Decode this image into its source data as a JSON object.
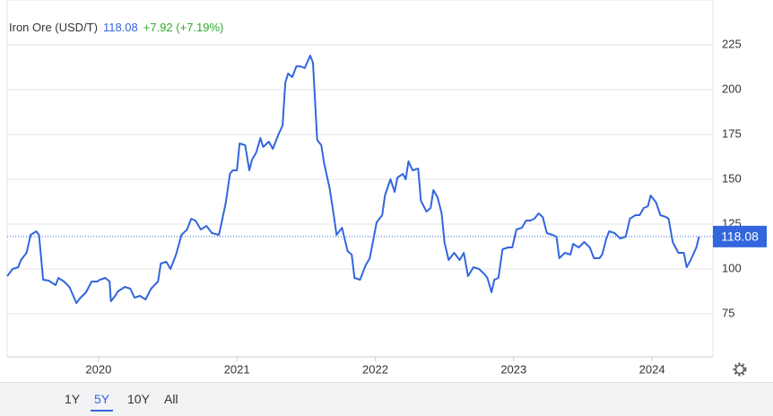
{
  "chart_data": {
    "type": "line",
    "title": "Iron Ore (USD/T)",
    "last_value": 118.08,
    "change_label": "+7.92 (+7.19%)",
    "color": "#3366dd",
    "x": [
      2019.34,
      2019.38,
      2019.42,
      2019.44,
      2019.48,
      2019.51,
      2019.55,
      2019.57,
      2019.6,
      2019.64,
      2019.69,
      2019.71,
      2019.75,
      2019.79,
      2019.84,
      2019.87,
      2019.91,
      2019.95,
      2019.99,
      2020.01,
      2020.05,
      2020.08,
      2020.09,
      2020.12,
      2020.14,
      2020.19,
      2020.23,
      2020.26,
      2020.3,
      2020.34,
      2020.38,
      2020.43,
      2020.45,
      2020.49,
      2020.52,
      2020.56,
      2020.6,
      2020.64,
      2020.67,
      2020.7,
      2020.74,
      2020.78,
      2020.82,
      2020.87,
      2020.89,
      2020.92,
      2020.95,
      2020.97,
      2021.0,
      2021.02,
      2021.06,
      2021.09,
      2021.11,
      2021.14,
      2021.17,
      2021.19,
      2021.23,
      2021.26,
      2021.3,
      2021.33,
      2021.35,
      2021.37,
      2021.4,
      2021.43,
      2021.46,
      2021.49,
      2021.53,
      2021.55,
      2021.58,
      2021.61,
      2021.63,
      2021.67,
      2021.7,
      2021.72,
      2021.76,
      2021.8,
      2021.83,
      2021.85,
      2021.89,
      2021.93,
      2021.96,
      2021.98,
      2022.01,
      2022.05,
      2022.07,
      2022.11,
      2022.14,
      2022.16,
      2022.2,
      2022.22,
      2022.24,
      2022.27,
      2022.31,
      2022.33,
      2022.37,
      2022.4,
      2022.42,
      2022.45,
      2022.48,
      2022.5,
      2022.53,
      2022.57,
      2022.61,
      2022.64,
      2022.67,
      2022.71,
      2022.75,
      2022.79,
      2022.81,
      2022.84,
      2022.86,
      2022.89,
      2022.92,
      2022.96,
      2022.99,
      2023.02,
      2023.06,
      2023.09,
      2023.12,
      2023.15,
      2023.18,
      2023.21,
      2023.24,
      2023.28,
      2023.31,
      2023.33,
      2023.37,
      2023.41,
      2023.43,
      2023.47,
      2023.51,
      2023.55,
      2023.58,
      2023.62,
      2023.64,
      2023.67,
      2023.69,
      2023.73,
      2023.77,
      2023.81,
      2023.84,
      2023.88,
      2023.91,
      2023.94,
      2023.97,
      2023.99,
      2024.03,
      2024.06,
      2024.1,
      2024.12,
      2024.15,
      2024.19,
      2024.23,
      2024.25,
      2024.28,
      2024.32,
      2024.34
    ],
    "values": [
      96,
      100,
      101,
      105,
      109,
      119,
      121,
      119,
      94,
      93.5,
      91,
      95,
      93,
      90,
      81,
      84,
      87,
      93,
      93,
      94,
      95,
      93,
      82,
      85,
      87.5,
      90,
      89,
      84,
      85,
      83,
      89,
      93,
      103,
      104,
      100,
      108,
      119,
      122,
      128,
      127,
      122,
      124,
      120,
      119,
      126,
      137,
      153,
      155,
      155,
      170,
      169,
      155,
      161,
      165,
      173,
      168,
      171,
      167,
      175,
      180,
      204,
      209,
      207,
      213,
      213,
      212,
      219,
      215,
      172,
      169,
      159,
      145,
      130,
      119,
      123,
      110,
      108,
      95,
      94,
      102,
      106,
      114,
      126,
      130,
      141,
      150,
      143,
      151,
      153,
      150,
      160,
      155,
      156,
      138,
      132,
      134,
      144,
      140,
      131,
      115,
      105,
      109,
      105,
      109,
      96,
      101,
      100,
      97,
      95,
      87,
      94,
      95,
      111,
      112,
      112,
      122,
      123,
      127,
      127,
      128,
      131,
      129,
      120,
      119,
      118,
      106,
      109,
      108,
      114,
      112,
      115,
      112,
      106,
      106,
      108,
      117,
      121,
      120,
      117,
      118,
      128,
      130,
      130,
      134,
      135,
      141,
      137,
      130,
      129,
      128,
      115,
      109,
      109,
      101,
      105,
      112,
      118.08
    ],
    "xlim": [
      2019.34,
      2024.44
    ],
    "xticks": [
      2020,
      2021,
      2022,
      2023,
      2024
    ],
    "ylim": [
      51,
      250
    ],
    "yticks": [
      75,
      100,
      125,
      150,
      175,
      200,
      225
    ],
    "grid": true,
    "range_buttons": [
      "1Y",
      "5Y",
      "10Y",
      "All"
    ],
    "selected_range": "5Y"
  }
}
